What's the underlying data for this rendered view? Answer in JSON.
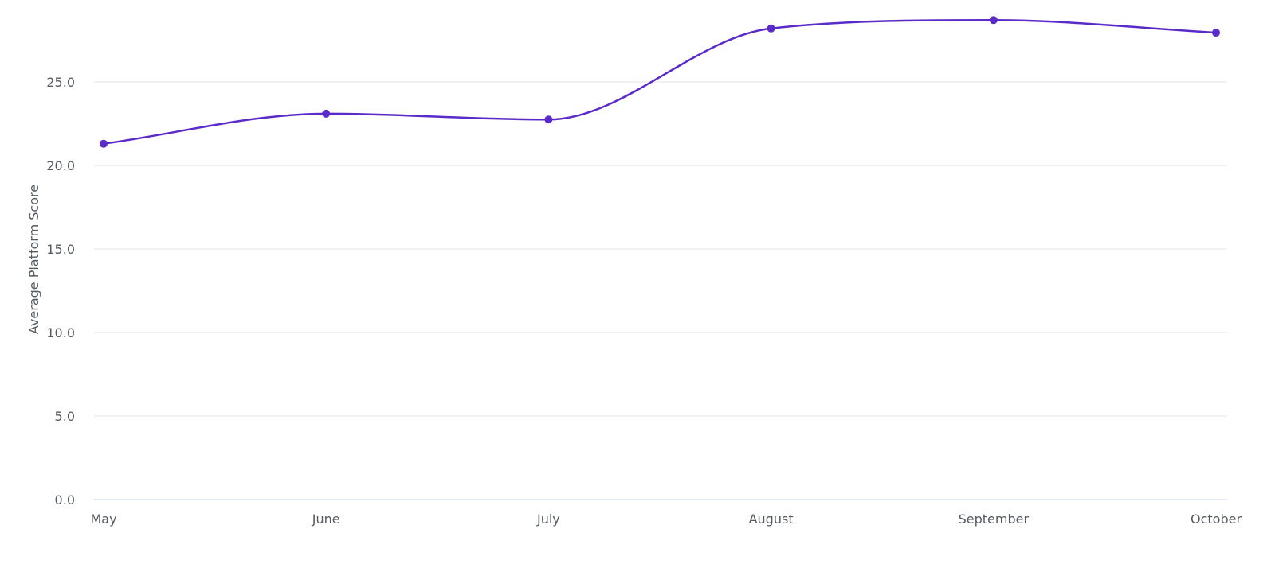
{
  "chart_data": {
    "type": "line",
    "categories": [
      "May",
      "June",
      "July",
      "August",
      "September",
      "October"
    ],
    "series": [
      {
        "values": [
          21.3,
          23.1,
          22.75,
          28.2,
          28.7,
          27.95
        ]
      }
    ],
    "ylabel": "Average Platform Score",
    "xlabel": "",
    "ylim": [
      0,
      28.7
    ],
    "yticks": [
      "0.0",
      "5.0",
      "10.0",
      "15.0",
      "20.0",
      "25.0"
    ],
    "grid": true,
    "line_color": "#5b2bc9",
    "marker_color": "#5b2bc9",
    "grid_color": "#e3e6ea",
    "curve": "smooth",
    "markers": true
  }
}
